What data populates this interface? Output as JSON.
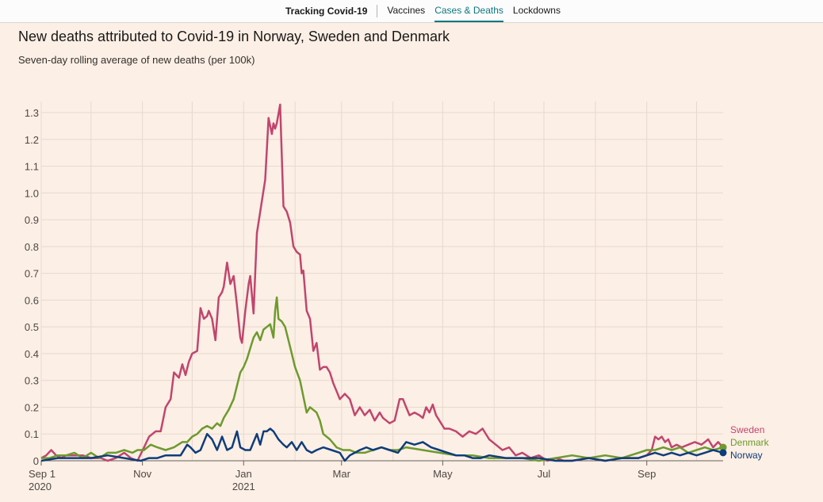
{
  "nav": {
    "title": "Tracking Covid-19",
    "tabs": [
      {
        "label": "Vaccines",
        "active": false
      },
      {
        "label": "Cases & Deaths",
        "active": true
      },
      {
        "label": "Lockdowns",
        "active": false
      }
    ]
  },
  "chart_data": {
    "type": "line",
    "title": "New deaths attributed to Covid-19 in Norway, Sweden and Denmark",
    "subtitle": "Seven-day rolling average of new deaths (per 100k)",
    "xlabel": "",
    "ylabel": "",
    "ylim": [
      0,
      1.3
    ],
    "xlim": [
      0,
      411
    ],
    "grid": true,
    "legend": "right-end-labels",
    "yticks": [
      0,
      0.1,
      0.2,
      0.3,
      0.4,
      0.5,
      0.6,
      0.7,
      0.8,
      0.9,
      1.0,
      1.1,
      1.2,
      1.3
    ],
    "ytick_labels": [
      "0",
      "0.1",
      "0.2",
      "0.3",
      "0.4",
      "0.5",
      "0.6",
      "0.7",
      "0.8",
      "0.9",
      "1.0",
      "1.1",
      "1.2",
      "1.3"
    ],
    "xticks": [
      {
        "day": 0,
        "label": "Sep 1",
        "sublabel": "2020"
      },
      {
        "day": 61,
        "label": "Nov",
        "sublabel": ""
      },
      {
        "day": 122,
        "label": "Jan",
        "sublabel": "2021"
      },
      {
        "day": 181,
        "label": "Mar",
        "sublabel": ""
      },
      {
        "day": 242,
        "label": "May",
        "sublabel": ""
      },
      {
        "day": 303,
        "label": "Jul",
        "sublabel": ""
      },
      {
        "day": 365,
        "label": "Sep",
        "sublabel": ""
      }
    ],
    "extra_gridlines": [
      30,
      91,
      153,
      212,
      273,
      334,
      395
    ],
    "series": [
      {
        "name": "Sweden",
        "color": "#c0466e",
        "x": [
          0,
          3,
          6,
          9,
          12,
          15,
          20,
          25,
          30,
          36,
          40,
          45,
          50,
          54,
          58,
          62,
          65,
          69,
          72,
          75,
          78,
          80,
          83,
          85,
          87,
          89,
          91,
          94,
          96,
          98,
          100,
          101,
          103,
          105,
          107,
          109,
          110,
          112,
          114,
          116,
          118,
          120,
          121,
          123,
          125,
          126,
          128,
          130,
          131,
          133,
          135,
          137,
          139,
          140,
          141,
          142,
          144,
          146,
          148,
          150,
          152,
          154,
          156,
          157,
          158,
          160,
          162,
          164,
          166,
          168,
          170,
          172,
          174,
          176,
          178,
          180,
          183,
          186,
          189,
          192,
          195,
          198,
          201,
          204,
          206,
          208,
          210,
          213,
          216,
          218,
          220,
          222,
          225,
          228,
          230,
          232,
          234,
          236,
          238,
          240,
          243,
          246,
          250,
          254,
          258,
          262,
          266,
          270,
          274,
          278,
          282,
          286,
          290,
          295,
          300,
          305,
          310,
          315,
          320,
          330,
          340,
          350,
          360,
          365,
          368,
          370,
          372,
          374,
          376,
          378,
          380,
          383,
          386,
          390,
          394,
          398,
          402,
          405,
          408,
          411
        ],
        "values": [
          0.01,
          0.02,
          0.04,
          0.02,
          0.01,
          0.02,
          0.02,
          0.02,
          0.01,
          0.01,
          0.0,
          0.01,
          0.03,
          0.01,
          0.0,
          0.05,
          0.09,
          0.11,
          0.11,
          0.2,
          0.23,
          0.33,
          0.31,
          0.36,
          0.32,
          0.37,
          0.4,
          0.41,
          0.57,
          0.53,
          0.54,
          0.56,
          0.53,
          0.45,
          0.61,
          0.63,
          0.65,
          0.74,
          0.66,
          0.69,
          0.58,
          0.46,
          0.44,
          0.56,
          0.66,
          0.69,
          0.55,
          0.85,
          0.89,
          0.97,
          1.05,
          1.28,
          1.22,
          1.26,
          1.24,
          1.26,
          1.33,
          0.95,
          0.93,
          0.89,
          0.8,
          0.78,
          0.77,
          0.7,
          0.71,
          0.56,
          0.53,
          0.41,
          0.44,
          0.34,
          0.35,
          0.35,
          0.33,
          0.29,
          0.26,
          0.23,
          0.25,
          0.23,
          0.17,
          0.2,
          0.17,
          0.19,
          0.15,
          0.18,
          0.16,
          0.15,
          0.14,
          0.15,
          0.23,
          0.23,
          0.2,
          0.17,
          0.18,
          0.17,
          0.16,
          0.2,
          0.18,
          0.21,
          0.17,
          0.15,
          0.12,
          0.12,
          0.11,
          0.09,
          0.11,
          0.1,
          0.12,
          0.08,
          0.06,
          0.04,
          0.05,
          0.02,
          0.03,
          0.01,
          0.02,
          0.0,
          0.01,
          0.0,
          0.0,
          0.01,
          0.0,
          0.01,
          0.01,
          0.02,
          0.04,
          0.09,
          0.08,
          0.09,
          0.07,
          0.08,
          0.05,
          0.06,
          0.05,
          0.06,
          0.07,
          0.06,
          0.08,
          0.05,
          0.07,
          0.05
        ]
      },
      {
        "name": "Denmark",
        "color": "#6d9a2e",
        "x": [
          0,
          5,
          10,
          15,
          20,
          25,
          30,
          35,
          40,
          45,
          50,
          55,
          58,
          62,
          66,
          70,
          75,
          80,
          85,
          88,
          91,
          94,
          97,
          100,
          103,
          106,
          108,
          110,
          113,
          116,
          118,
          120,
          122,
          124,
          126,
          128,
          130,
          132,
          134,
          136,
          138,
          140,
          141,
          142,
          143,
          145,
          147,
          149,
          151,
          153,
          156,
          158,
          160,
          162,
          164,
          166,
          168,
          170,
          174,
          178,
          182,
          186,
          190,
          195,
          200,
          205,
          210,
          215,
          220,
          230,
          240,
          250,
          260,
          270,
          280,
          290,
          300,
          310,
          320,
          330,
          340,
          350,
          360,
          365,
          370,
          375,
          380,
          385,
          390,
          395,
          400,
          405,
          411
        ],
        "values": [
          0.01,
          0.01,
          0.02,
          0.02,
          0.03,
          0.01,
          0.03,
          0.01,
          0.03,
          0.03,
          0.04,
          0.03,
          0.04,
          0.04,
          0.06,
          0.05,
          0.04,
          0.05,
          0.07,
          0.07,
          0.09,
          0.1,
          0.12,
          0.13,
          0.12,
          0.14,
          0.13,
          0.16,
          0.19,
          0.23,
          0.28,
          0.33,
          0.35,
          0.38,
          0.42,
          0.46,
          0.48,
          0.45,
          0.49,
          0.5,
          0.51,
          0.46,
          0.56,
          0.61,
          0.53,
          0.52,
          0.5,
          0.45,
          0.4,
          0.35,
          0.3,
          0.24,
          0.18,
          0.2,
          0.19,
          0.18,
          0.15,
          0.1,
          0.08,
          0.05,
          0.04,
          0.04,
          0.03,
          0.03,
          0.04,
          0.05,
          0.04,
          0.04,
          0.05,
          0.04,
          0.03,
          0.02,
          0.02,
          0.01,
          0.01,
          0.01,
          0.0,
          0.01,
          0.02,
          0.01,
          0.02,
          0.01,
          0.03,
          0.04,
          0.04,
          0.05,
          0.04,
          0.05,
          0.03,
          0.04,
          0.05,
          0.04,
          0.05
        ]
      },
      {
        "name": "Norway",
        "color": "#0f3d7a",
        "x": [
          0,
          10,
          20,
          30,
          40,
          50,
          60,
          65,
          70,
          75,
          80,
          84,
          88,
          90,
          93,
          96,
          100,
          103,
          106,
          109,
          112,
          115,
          118,
          120,
          123,
          126,
          128,
          130,
          132,
          134,
          136,
          138,
          140,
          143,
          146,
          148,
          151,
          154,
          157,
          160,
          163,
          166,
          170,
          175,
          180,
          183,
          186,
          189,
          192,
          196,
          200,
          205,
          210,
          215,
          220,
          225,
          230,
          235,
          240,
          245,
          250,
          255,
          260,
          265,
          270,
          280,
          290,
          300,
          310,
          320,
          330,
          340,
          350,
          360,
          365,
          370,
          375,
          380,
          385,
          390,
          395,
          400,
          405,
          411
        ],
        "values": [
          0.0,
          0.01,
          0.01,
          0.01,
          0.02,
          0.01,
          0.0,
          0.01,
          0.01,
          0.02,
          0.02,
          0.02,
          0.06,
          0.05,
          0.03,
          0.04,
          0.1,
          0.08,
          0.04,
          0.09,
          0.04,
          0.05,
          0.11,
          0.05,
          0.04,
          0.04,
          0.07,
          0.1,
          0.06,
          0.11,
          0.11,
          0.12,
          0.11,
          0.08,
          0.06,
          0.05,
          0.07,
          0.04,
          0.07,
          0.04,
          0.03,
          0.04,
          0.05,
          0.04,
          0.03,
          0.0,
          0.02,
          0.03,
          0.04,
          0.05,
          0.04,
          0.05,
          0.04,
          0.03,
          0.07,
          0.06,
          0.07,
          0.05,
          0.04,
          0.03,
          0.02,
          0.02,
          0.01,
          0.01,
          0.02,
          0.01,
          0.01,
          0.01,
          0.0,
          0.0,
          0.01,
          0.0,
          0.01,
          0.01,
          0.02,
          0.03,
          0.02,
          0.03,
          0.02,
          0.03,
          0.02,
          0.03,
          0.04,
          0.03
        ]
      }
    ]
  }
}
